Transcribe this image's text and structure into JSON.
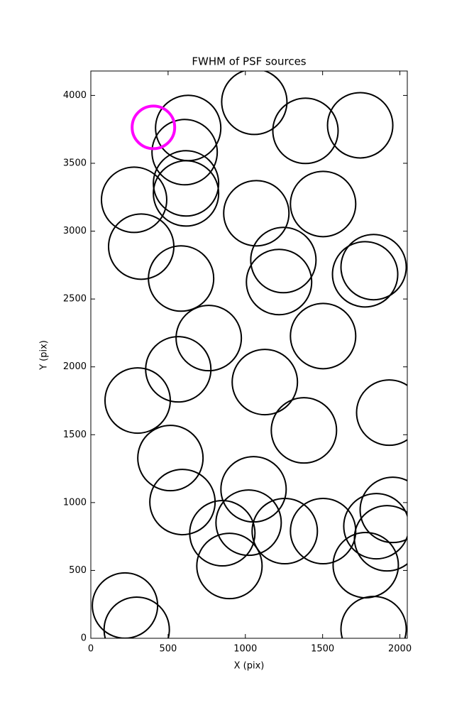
{
  "chart_data": {
    "type": "scatter",
    "title": "FWHM of PSF sources",
    "x_label": "X (pix)",
    "y_label": "Y (pix)",
    "xlim": [
      0,
      2048
    ],
    "ylim": [
      0,
      4180
    ],
    "xticks": [
      0,
      500,
      1000,
      1500,
      2000
    ],
    "yticks": [
      0,
      500,
      1000,
      1500,
      2000,
      2500,
      3000,
      3500,
      4000
    ],
    "series": [
      {
        "color": "#000000",
        "x": [
          630,
          1058,
          1389,
          1743,
          607,
          616,
          616,
          280,
          1071,
          1503,
          326,
          1246,
          1218,
          584,
          1830,
          1775,
          763,
          1503,
          566,
          1126,
          303,
          1931,
          1379,
          515,
          1053,
          593,
          1954,
          851,
          1021,
          1255,
          1503,
          1848,
          1917,
          897,
          1779,
          221,
          297,
          1830
        ],
        "values": [
          3760,
          3953,
          3739,
          3780,
          3582,
          3352,
          3278,
          3231,
          3132,
          3200,
          2886,
          2787,
          2625,
          2651,
          2735,
          2682,
          2212,
          2227,
          1982,
          1888,
          1752,
          1663,
          1532,
          1328,
          1098,
          1004,
          946,
          774,
          852,
          790,
          790,
          826,
          737,
          533,
          539,
          241,
          63,
          68
        ]
      },
      {
        "color": "#ff00ff",
        "x": [
          405
        ],
        "values": [
          3765
        ]
      }
    ]
  }
}
